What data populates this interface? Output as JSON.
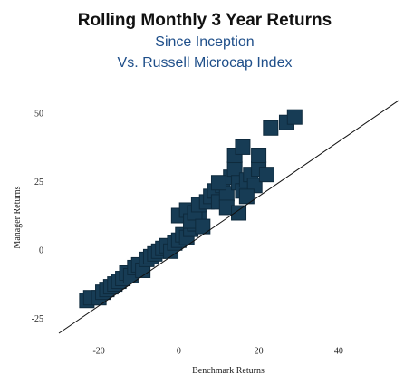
{
  "chart_data": {
    "type": "scatter",
    "title": "Rolling Monthly 3 Year Returns",
    "subtitle": [
      "Since Inception",
      "Vs. Russell Microcap Index"
    ],
    "xlabel": "Benchmark Returns",
    "ylabel": "Manager Returns",
    "color": "#173c55",
    "x": [
      -23,
      -22,
      -20,
      -19,
      -18,
      -17,
      -16,
      -15,
      -14,
      -13,
      -12,
      -11,
      -10,
      -9,
      -8,
      -7,
      -6,
      -5,
      -4,
      -3,
      -2,
      -1,
      0,
      1,
      2,
      3,
      4,
      5,
      0,
      2,
      3,
      4,
      5,
      6,
      7,
      8,
      9,
      10,
      11,
      12,
      13,
      14,
      15,
      16,
      17,
      18,
      19,
      20,
      14,
      16,
      12,
      15,
      17,
      22,
      23,
      27,
      29,
      20,
      10
    ],
    "y": [
      -18,
      -17,
      -17,
      -15,
      -14,
      -13,
      -12,
      -11,
      -10,
      -8,
      -9,
      -6,
      -5,
      -7,
      -3,
      -2,
      -1,
      0,
      1,
      2,
      0,
      3,
      4,
      6,
      5,
      8,
      10,
      12,
      13,
      15,
      11,
      14,
      17,
      9,
      18,
      20,
      22,
      18,
      24,
      21,
      27,
      30,
      25,
      22,
      26,
      28,
      24,
      30,
      35,
      38,
      16,
      14,
      20,
      28,
      45,
      47,
      49,
      35,
      25
    ],
    "xlim": [
      -30,
      55
    ],
    "ylim": [
      -30,
      57
    ],
    "xticks": [
      -20,
      0,
      20,
      40
    ],
    "yticks": [
      -25,
      0,
      25,
      50
    ],
    "reference_line": "y=x",
    "grid": false
  }
}
